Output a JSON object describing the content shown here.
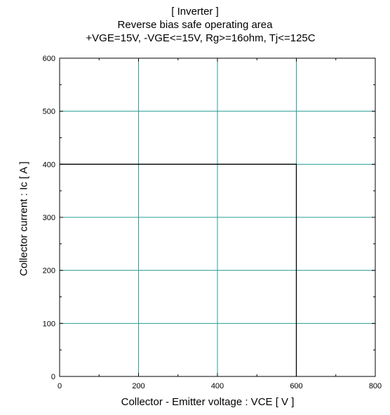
{
  "chart_data": {
    "type": "line",
    "title": "[ Inverter ]",
    "subtitle": "Reverse bias safe operating area",
    "conditions": "+VGE=15V, -VGE<=15V, Rg>=16ohm, Tj<=125C",
    "xlabel": "Collector - Emitter voltage  :  VCE  [ V ]",
    "ylabel": "Collector current  :  Ic  [ A ]",
    "xlim": [
      0,
      800
    ],
    "ylim": [
      0,
      600
    ],
    "xticks": [
      0,
      200,
      400,
      600,
      800
    ],
    "yticks": [
      0,
      100,
      200,
      300,
      400,
      500,
      600
    ],
    "grid": true,
    "colors": {
      "grid": "#2a9d96",
      "series": "#000000"
    },
    "series": [
      {
        "x": [
          0,
          600,
          600
        ],
        "y": [
          400,
          400,
          0
        ]
      }
    ]
  }
}
